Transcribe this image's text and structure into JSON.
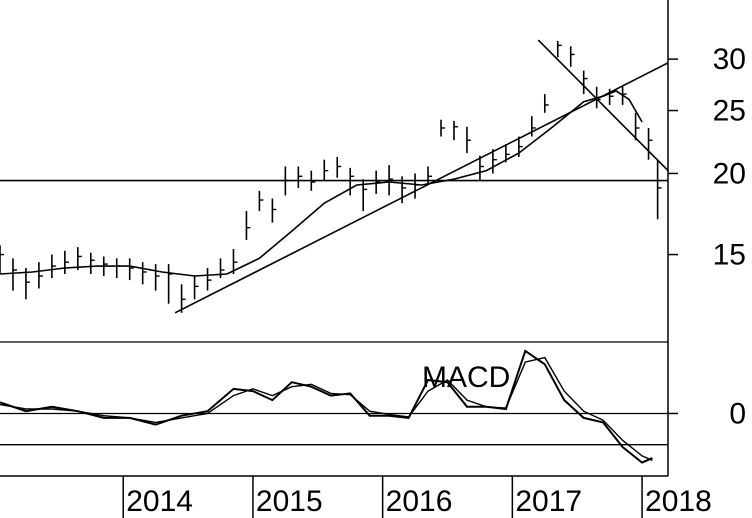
{
  "chart_data": [
    {
      "type": "line",
      "panel": "price",
      "title": "",
      "xlabel": "",
      "ylabel": "",
      "scale": "log",
      "ylim": [
        11,
        37
      ],
      "xlim": [
        2013.05,
        2018.2
      ],
      "y_ticks": [
        15,
        20,
        25,
        30
      ],
      "y_tick_labels": [
        "15",
        "20",
        "25",
        "30"
      ],
      "axis_side": "right",
      "grid": false,
      "legend": "none",
      "series": [
        {
          "style": "price-bars",
          "x": [
            2013.05,
            2013.15,
            2013.25,
            2013.35,
            2013.45,
            2013.55,
            2013.65,
            2013.75,
            2013.85,
            2013.95,
            2014.05,
            2014.15,
            2014.25,
            2014.35,
            2014.45,
            2014.55,
            2014.65,
            2014.75,
            2014.85,
            2014.95,
            2015.05,
            2015.15,
            2015.25,
            2015.35,
            2015.45,
            2015.55,
            2015.65,
            2015.75,
            2015.85,
            2015.95,
            2016.05,
            2016.15,
            2016.25,
            2016.35,
            2016.45,
            2016.55,
            2016.65,
            2016.75,
            2016.85,
            2016.95,
            2017.05,
            2017.15,
            2017.25,
            2017.35,
            2017.45,
            2017.55,
            2017.65,
            2017.75,
            2017.85,
            2017.95,
            2018.05,
            2018.12
          ],
          "y": [
            15.0,
            14.2,
            13.6,
            13.9,
            14.4,
            14.6,
            14.9,
            14.7,
            14.5,
            14.4,
            14.3,
            14.1,
            13.9,
            14.0,
            12.8,
            13.4,
            13.7,
            14.2,
            14.6,
            16.5,
            18.2,
            17.6,
            19.5,
            19.8,
            19.4,
            20.2,
            20.5,
            19.8,
            18.9,
            19.4,
            19.6,
            19.0,
            19.2,
            19.8,
            23.5,
            23.6,
            22.5,
            20.5,
            21.0,
            21.4,
            22.0,
            23.5,
            25.5,
            31.5,
            30.5,
            28.0,
            26.0,
            26.3,
            26.5,
            23.5,
            22.5,
            19.0
          ],
          "low": [
            14.0,
            13.2,
            12.8,
            13.3,
            13.8,
            14.0,
            14.2,
            14.0,
            13.9,
            13.8,
            13.7,
            13.5,
            13.2,
            12.6,
            12.2,
            12.8,
            13.2,
            13.8,
            14.0,
            15.8,
            17.5,
            16.8,
            18.5,
            19.0,
            18.8,
            19.5,
            19.7,
            18.5,
            17.5,
            18.6,
            18.5,
            18.0,
            18.3,
            19.2,
            22.8,
            22.5,
            21.5,
            19.5,
            20.0,
            20.8,
            21.2,
            22.8,
            24.8,
            30.2,
            29.2,
            26.5,
            25.2,
            25.5,
            25.5,
            22.5,
            21.0,
            17.0
          ],
          "high": [
            15.5,
            14.8,
            14.3,
            14.6,
            15.0,
            15.2,
            15.4,
            15.1,
            14.9,
            14.8,
            14.8,
            14.6,
            14.5,
            14.5,
            13.5,
            13.9,
            14.3,
            14.8,
            15.3,
            17.5,
            18.8,
            18.3,
            20.5,
            20.5,
            20.2,
            21.0,
            21.2,
            20.4,
            19.6,
            20.2,
            20.6,
            19.8,
            20.0,
            20.5,
            24.2,
            24.1,
            23.6,
            21.3,
            21.8,
            22.2,
            22.8,
            24.5,
            26.5,
            32.0,
            31.4,
            28.8,
            27.2,
            27.0,
            27.2,
            24.8,
            23.5,
            21.0
          ]
        },
        {
          "style": "moving-average",
          "x": [
            2013.05,
            2013.3,
            2013.55,
            2013.8,
            2014.05,
            2014.3,
            2014.55,
            2014.8,
            2015.05,
            2015.3,
            2015.55,
            2015.8,
            2016.05,
            2016.3,
            2016.55,
            2016.8,
            2017.05,
            2017.3,
            2017.55,
            2017.7,
            2017.8,
            2017.9,
            2018.0
          ],
          "y": [
            14.0,
            14.1,
            14.3,
            14.4,
            14.4,
            14.1,
            13.9,
            14.0,
            14.8,
            16.3,
            18.0,
            19.2,
            19.4,
            19.2,
            19.6,
            20.2,
            21.5,
            23.5,
            25.8,
            26.3,
            26.8,
            26.0,
            24.0
          ]
        },
        {
          "style": "horizontal-line",
          "x": [
            2013.05,
            2018.2
          ],
          "y": [
            19.5,
            19.5
          ]
        },
        {
          "style": "trendline-up",
          "x": [
            2014.4,
            2018.2
          ],
          "y": [
            12.2,
            29.6
          ]
        },
        {
          "style": "trendline-down",
          "x": [
            2017.2,
            2018.2
          ],
          "y": [
            32.1,
            20.2
          ]
        }
      ]
    },
    {
      "type": "line",
      "panel": "indicator",
      "annotation": "MACD",
      "ylim": [
        -1.4,
        1.6
      ],
      "y_ticks": [
        0
      ],
      "y_tick_labels": [
        "0"
      ],
      "axis_side": "right",
      "legend": "none",
      "series": [
        {
          "style": "macd",
          "x": [
            2013.05,
            2013.25,
            2013.45,
            2013.65,
            2013.85,
            2014.05,
            2014.25,
            2014.45,
            2014.65,
            2014.85,
            2015.0,
            2015.15,
            2015.3,
            2015.45,
            2015.6,
            2015.75,
            2015.9,
            2016.05,
            2016.2,
            2016.35,
            2016.5,
            2016.65,
            2016.8,
            2016.95,
            2017.1,
            2017.25,
            2017.4,
            2017.55,
            2017.7,
            2017.85,
            2018.0,
            2018.08
          ],
          "y": [
            0.25,
            0.05,
            0.15,
            0.05,
            -0.1,
            -0.1,
            -0.25,
            -0.05,
            0.05,
            0.55,
            0.5,
            0.3,
            0.7,
            0.6,
            0.4,
            0.45,
            -0.05,
            -0.05,
            -0.1,
            0.75,
            0.7,
            0.15,
            0.15,
            0.1,
            1.4,
            1.1,
            0.3,
            -0.1,
            -0.2,
            -0.75,
            -1.1,
            -1.0
          ]
        },
        {
          "style": "signal",
          "x": [
            2013.05,
            2013.25,
            2013.45,
            2013.65,
            2013.85,
            2014.05,
            2014.25,
            2014.45,
            2014.65,
            2014.85,
            2015.0,
            2015.15,
            2015.3,
            2015.45,
            2015.6,
            2015.75,
            2015.9,
            2016.05,
            2016.2,
            2016.35,
            2016.5,
            2016.65,
            2016.8,
            2016.95,
            2017.1,
            2017.25,
            2017.4,
            2017.55,
            2017.7,
            2017.85,
            2018.0,
            2018.08
          ],
          "y": [
            0.2,
            0.1,
            0.1,
            0.05,
            -0.05,
            -0.1,
            -0.2,
            -0.1,
            0.0,
            0.4,
            0.55,
            0.4,
            0.6,
            0.65,
            0.45,
            0.42,
            0.05,
            -0.02,
            -0.08,
            0.5,
            0.75,
            0.3,
            0.15,
            0.12,
            1.15,
            1.25,
            0.5,
            0.05,
            -0.15,
            -0.6,
            -0.95,
            -1.05
          ]
        },
        {
          "style": "horizontal-line",
          "x": [
            2013.05,
            2018.2
          ],
          "y": [
            -0.7,
            -0.7
          ]
        }
      ]
    }
  ],
  "x_axis": {
    "labels": [
      "2014",
      "2015",
      "2016",
      "2017",
      "2018"
    ],
    "positions": [
      2014,
      2015,
      2016,
      2017,
      2018
    ]
  }
}
